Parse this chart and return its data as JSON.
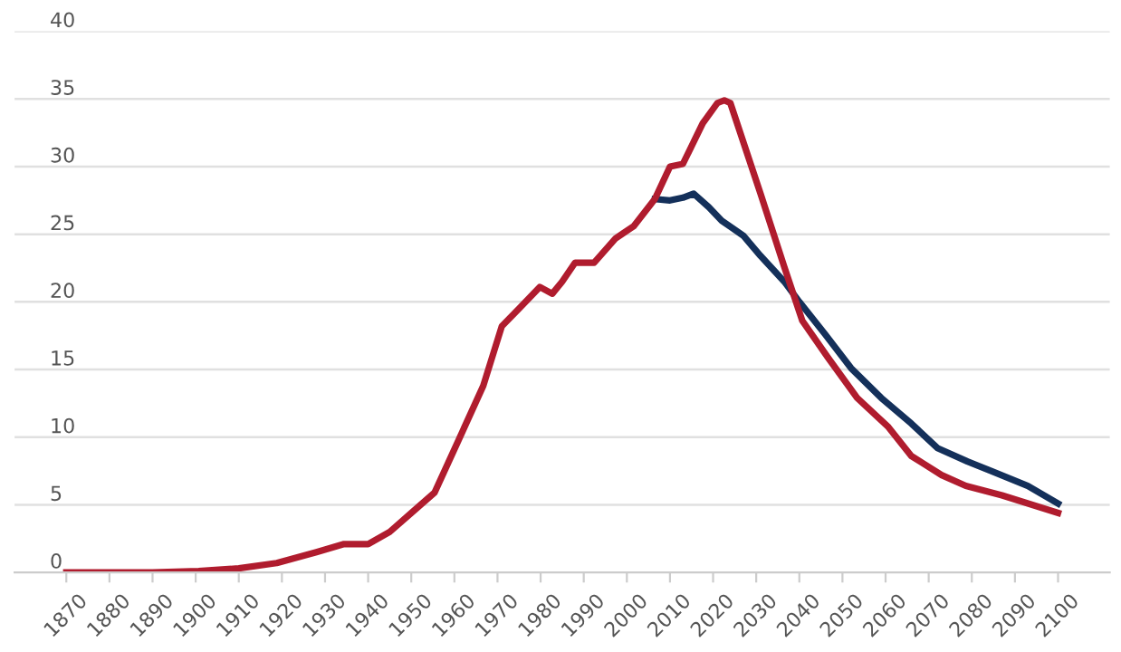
{
  "chart_data": {
    "type": "line",
    "xlim": [
      1858,
      2112
    ],
    "xticks": [
      1870,
      1880,
      1890,
      1900,
      1910,
      1920,
      1930,
      1940,
      1950,
      1960,
      1970,
      1980,
      1990,
      2000,
      2010,
      2020,
      2030,
      2040,
      2050,
      2060,
      2070,
      2080,
      2090,
      2100
    ],
    "ylim": [
      0,
      40
    ],
    "yticks": [
      0,
      5,
      10,
      15,
      20,
      25,
      30,
      35,
      40
    ],
    "grid": "y",
    "legend": false,
    "marker": "none",
    "line_style": "solid",
    "series": [
      {
        "color": "#14305a",
        "x": [
          2006.5,
          2010,
          2013,
          2015.5,
          2019,
          2022,
          2027,
          2031,
          2036.5,
          2040,
          2046,
          2052,
          2059,
          2066,
          2072,
          2079,
          2084.5,
          2093,
          2100
        ],
        "values": [
          27.6,
          27.5,
          27.7,
          28.0,
          27.0,
          26.0,
          24.9,
          23.4,
          21.5,
          20.0,
          17.6,
          15.1,
          12.9,
          11.0,
          9.2,
          8.2,
          7.5,
          6.4,
          5.1
        ]
      },
      {
        "color": "#b01c2e",
        "x": [
          1870,
          1890,
          1900.7,
          1910,
          1918.8,
          1928,
          1934.4,
          1940,
          1945,
          1950,
          1955.4,
          1961,
          1966.7,
          1971,
          1975,
          1979.8,
          1982.7,
          1985,
          1988,
          1992.4,
          1997.4,
          2001.6,
          2006.5,
          2010,
          2013,
          2017.6,
          2021,
          2022.6,
          2024,
          2031,
          2036.5,
          2040.7,
          2046.6,
          2053.4,
          2060.5,
          2066,
          2073,
          2078.6,
          2087,
          2100
        ],
        "values": [
          0,
          0,
          0.1,
          0.3,
          0.7,
          1.5,
          2.1,
          2.1,
          3.0,
          4.4,
          5.9,
          9.8,
          13.8,
          18.2,
          19.5,
          21.1,
          20.6,
          21.5,
          22.9,
          22.9,
          24.7,
          25.6,
          27.6,
          30,
          30.2,
          33.2,
          34.7,
          34.9,
          34.7,
          28,
          22.6,
          18.6,
          15.9,
          12.9,
          10.8,
          8.6,
          7.2,
          6.4,
          5.7,
          4.4
        ]
      }
    ]
  }
}
